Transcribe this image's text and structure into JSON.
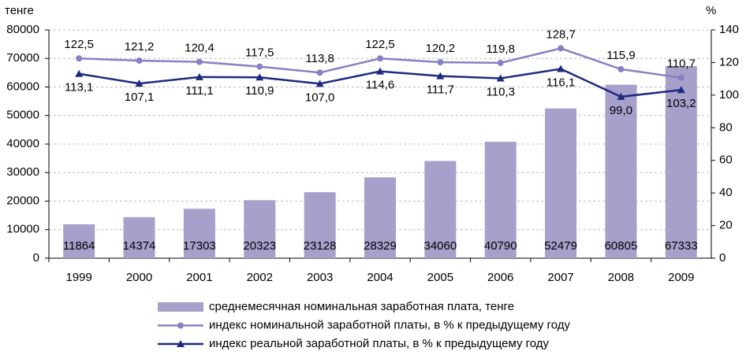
{
  "chart_data": {
    "type": "bar",
    "y_axis_label": "тенге",
    "y2_axis_label": "%",
    "categories": [
      "1999",
      "2000",
      "2001",
      "2002",
      "2003",
      "2004",
      "2005",
      "2006",
      "2007",
      "2008",
      "2009"
    ],
    "series": [
      {
        "name": "среднемесячная номинальная заработная плата, тенге",
        "type": "bar",
        "color": "#a6a0ca",
        "axis": "y",
        "values": [
          11864,
          14374,
          17303,
          20323,
          23128,
          28329,
          34060,
          40790,
          52479,
          60805,
          67333
        ]
      },
      {
        "name": "индекс номинальной заработной платы, в % к предыдущему году",
        "type": "line",
        "marker": "circle",
        "color": "#8582c4",
        "axis": "y2",
        "values": [
          122.5,
          121.2,
          120.4,
          117.5,
          113.8,
          122.5,
          120.2,
          119.8,
          128.7,
          115.9,
          110.7
        ],
        "value_labels": [
          "122,5",
          "121,2",
          "120,4",
          "117,5",
          "113,8",
          "122,5",
          "120,2",
          "119,8",
          "128,7",
          "115,9",
          "110,7"
        ]
      },
      {
        "name": "индекс реальной заработной платы, в % к предыдущему году",
        "type": "line",
        "marker": "triangle",
        "color": "#1c2a80",
        "axis": "y2",
        "values": [
          113.1,
          107.1,
          111.1,
          110.9,
          107.0,
          114.6,
          111.7,
          110.3,
          116.1,
          99.0,
          103.2
        ],
        "value_labels": [
          "113,1",
          "107,1",
          "111,1",
          "110,9",
          "107,0",
          "114,6",
          "111,7",
          "110,3",
          "116,1",
          "99,0",
          "103,2"
        ]
      }
    ],
    "ylim": [
      0,
      80000
    ],
    "yticks": [
      0,
      10000,
      20000,
      30000,
      40000,
      50000,
      60000,
      70000,
      80000
    ],
    "y2lim": [
      0,
      140
    ],
    "y2ticks": [
      0,
      20,
      40,
      60,
      80,
      100,
      120,
      140
    ],
    "grid": true
  }
}
